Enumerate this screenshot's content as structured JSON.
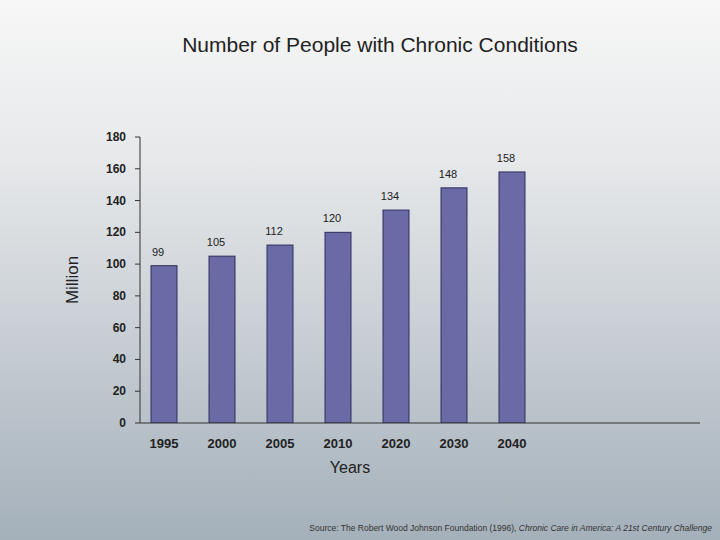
{
  "chart_data": {
    "type": "bar",
    "title": "Number of People with Chronic Conditions",
    "x_label": "Years",
    "y_label": "Million",
    "categories": [
      "1995",
      "2000",
      "2005",
      "2010",
      "2020",
      "2030",
      "2040"
    ],
    "values": [
      99,
      105,
      112,
      120,
      134,
      148,
      158
    ],
    "color": "#6a6aa6",
    "ylim": [
      0,
      180
    ],
    "yticks": [
      0,
      20,
      40,
      60,
      80,
      100,
      120,
      140,
      160,
      180
    ],
    "grid": false,
    "data_labels": true,
    "source": "Source: The Robert Wood Johnson Foundation (1996), ",
    "source_title": "Chronic Care in America: A 21st Century Challenge"
  }
}
